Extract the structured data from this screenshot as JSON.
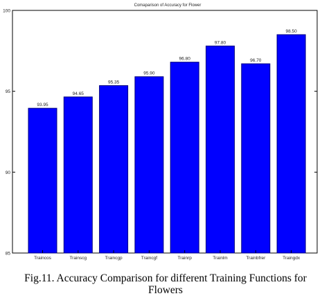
{
  "chart_data": {
    "type": "bar",
    "title": "Comaparison of Accuracy for Flower",
    "categories": [
      "Traincos",
      "Trainscg",
      "Traincgp",
      "Traincgf",
      "Trainrp",
      "Trainlm",
      "Trainbfrer",
      "Traingdx"
    ],
    "values": [
      93.95,
      94.65,
      95.35,
      95.9,
      96.8,
      97.8,
      96.7,
      98.5
    ],
    "value_labels": [
      "93.95",
      "94.65",
      "95.35",
      "95.90",
      "96.80",
      "97.80",
      "96.70",
      "98.50"
    ],
    "ylim": [
      85,
      100
    ],
    "yticks": [
      85,
      90,
      95,
      100
    ],
    "xlabel": "",
    "ylabel": "",
    "grid": false,
    "bar_color": "#0000ff",
    "bar_edge_color": "#000080"
  },
  "caption": {
    "line1": "Fig.11. Accuracy Comparison for different Training Functions for",
    "line2": "Flowers"
  }
}
